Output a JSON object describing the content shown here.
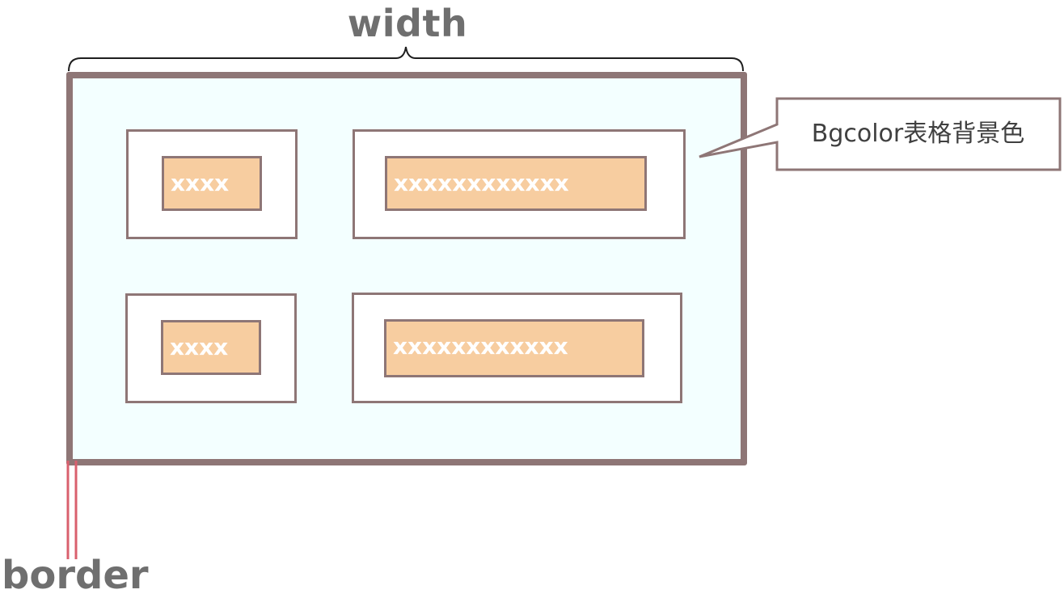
{
  "labels": {
    "width": "width",
    "border": "border",
    "callout": "Bgcolor表格背景色"
  },
  "cells": [
    {
      "text": "xxxx"
    },
    {
      "text": "xxxxxxxxxxxx"
    },
    {
      "text": "xxxx"
    },
    {
      "text": "xxxxxxxxxxxx"
    }
  ],
  "colors": {
    "table_border": "#8e7676",
    "table_background": "#f3ffff",
    "cell_background": "#ffffff",
    "content_fill": "#f7cda0",
    "border_marker": "#d9606e",
    "label_text": "#6f6f6f"
  }
}
